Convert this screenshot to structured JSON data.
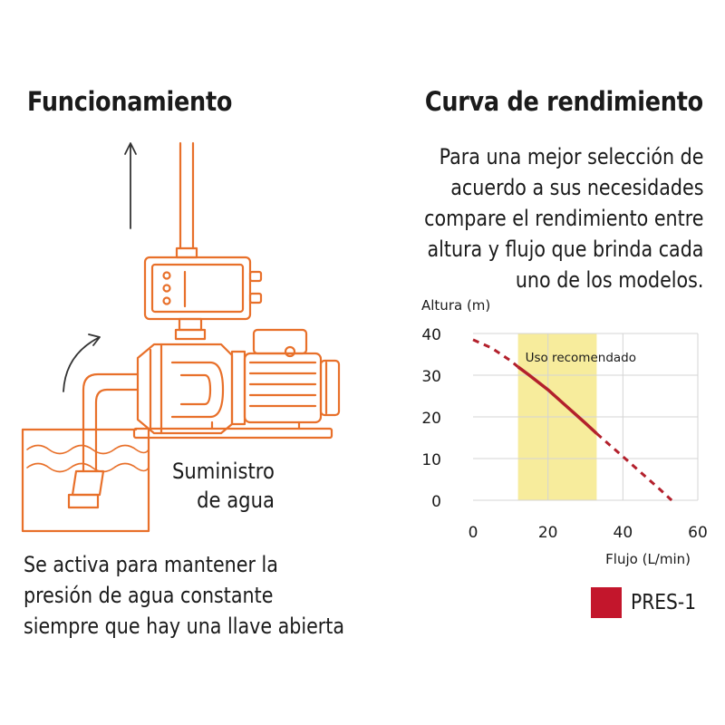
{
  "left": {
    "title": "Funcionamiento",
    "supply_lines": [
      "Suministro",
      "de agua"
    ],
    "description_lines": [
      "Se activa para mantener la",
      "presión de agua constante",
      "siempre que hay una llave abierta"
    ]
  },
  "right": {
    "title": "Curva de rendimiento",
    "intro_lines": [
      "Para una mejor selección de",
      "acuerdo a sus necesidades",
      "compare el rendimiento entre",
      "altura y flujo que brinda cada",
      "uno de los modelos."
    ]
  },
  "colors": {
    "illustration": "#e8702a",
    "curve": "#b3202c",
    "band": "#f7ec9c",
    "legend": "#c3162c"
  },
  "chart_data": {
    "type": "line",
    "ylabel": "Altura (m)",
    "xlabel": "Flujo (L/min)",
    "xlim": [
      0,
      60
    ],
    "ylim": [
      0,
      40
    ],
    "x_ticks": [
      0,
      20,
      40,
      60
    ],
    "y_ticks": [
      0,
      10,
      20,
      30,
      40
    ],
    "grid": true,
    "band": {
      "label": "Uso recomendado",
      "x_range": [
        12,
        33
      ]
    },
    "series": [
      {
        "name": "PRES-1",
        "x": [
          0,
          5,
          10,
          12,
          15,
          20,
          25,
          30,
          33,
          40,
          45,
          50,
          53
        ],
        "y": [
          38.5,
          36.5,
          33.5,
          32,
          30,
          26.5,
          22.5,
          18.5,
          16,
          10.5,
          6.5,
          2.5,
          0
        ]
      }
    ],
    "legend": [
      "PRES-1"
    ]
  }
}
